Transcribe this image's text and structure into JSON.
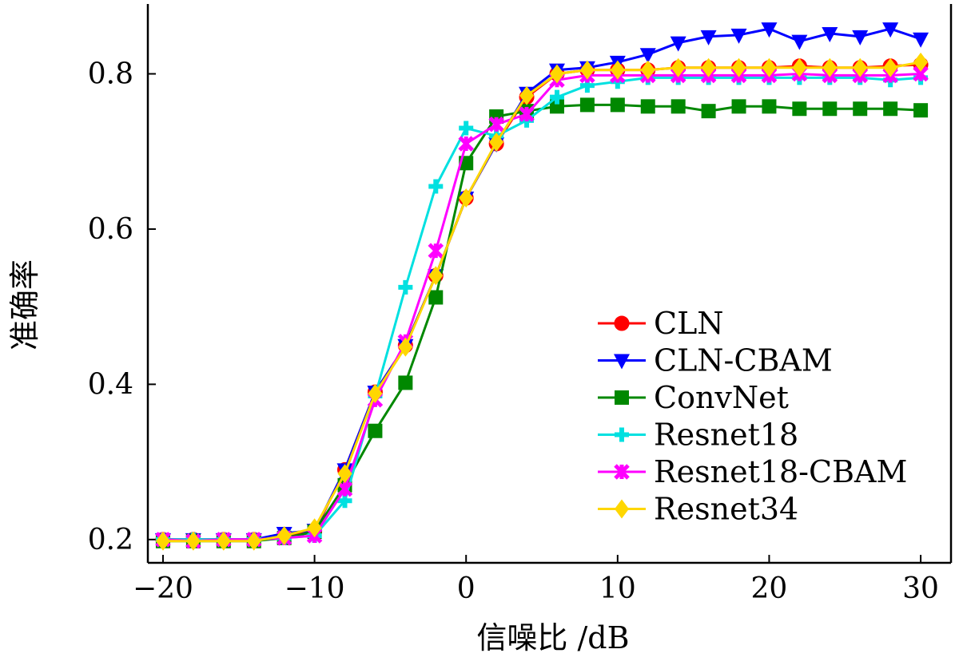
{
  "chart_data": {
    "type": "line",
    "title": "",
    "xlabel": "信噪比 /dB",
    "ylabel": "准确率",
    "xlim": [
      -21,
      32
    ],
    "ylim": [
      0.17,
      0.89
    ],
    "xticks": [
      -20,
      -10,
      0,
      10,
      20,
      30
    ],
    "xtick_labels": [
      "−20",
      "−10",
      "0",
      "10",
      "20",
      "30"
    ],
    "yticks": [
      0.2,
      0.4,
      0.6,
      0.8
    ],
    "ytick_labels": [
      "0.2",
      "0.4",
      "0.6",
      "0.8"
    ],
    "grid": false,
    "legend_position": "lower-right",
    "x": [
      -20,
      -18,
      -16,
      -14,
      -12,
      -10,
      -8,
      -6,
      -4,
      -2,
      0,
      2,
      4,
      6,
      8,
      10,
      12,
      14,
      16,
      18,
      20,
      22,
      24,
      26,
      28,
      30
    ],
    "series": [
      {
        "name": "CLN",
        "color": "#ff0000",
        "marker": "circle",
        "values": [
          0.2,
          0.2,
          0.2,
          0.2,
          0.205,
          0.21,
          0.29,
          0.39,
          0.45,
          0.54,
          0.64,
          0.71,
          0.77,
          0.8,
          0.805,
          0.805,
          0.805,
          0.808,
          0.808,
          0.808,
          0.808,
          0.81,
          0.808,
          0.808,
          0.81,
          0.812
        ]
      },
      {
        "name": "CLN-CBAM",
        "color": "#0000ff",
        "marker": "triangle-down",
        "values": [
          0.2,
          0.2,
          0.2,
          0.2,
          0.208,
          0.212,
          0.29,
          0.39,
          0.45,
          0.54,
          0.64,
          0.71,
          0.775,
          0.805,
          0.808,
          0.815,
          0.825,
          0.84,
          0.848,
          0.85,
          0.858,
          0.842,
          0.852,
          0.848,
          0.858,
          0.845
        ]
      },
      {
        "name": "ConvNet",
        "color": "#008800",
        "marker": "square",
        "values": [
          0.198,
          0.198,
          0.198,
          0.198,
          0.202,
          0.21,
          0.27,
          0.34,
          0.402,
          0.512,
          0.685,
          0.745,
          0.752,
          0.758,
          0.76,
          0.76,
          0.758,
          0.758,
          0.752,
          0.758,
          0.758,
          0.755,
          0.755,
          0.755,
          0.755,
          0.753
        ]
      },
      {
        "name": "Resnet18",
        "color": "#00e0e0",
        "marker": "plus",
        "values": [
          0.2,
          0.2,
          0.2,
          0.2,
          0.202,
          0.205,
          0.25,
          0.385,
          0.525,
          0.655,
          0.73,
          0.72,
          0.74,
          0.77,
          0.785,
          0.79,
          0.795,
          0.795,
          0.795,
          0.795,
          0.795,
          0.795,
          0.795,
          0.795,
          0.792,
          0.795
        ]
      },
      {
        "name": "Resnet18-CBAM",
        "color": "#ff00ff",
        "marker": "x-star",
        "values": [
          0.2,
          0.198,
          0.2,
          0.2,
          0.202,
          0.205,
          0.265,
          0.38,
          0.455,
          0.572,
          0.71,
          0.735,
          0.748,
          0.792,
          0.798,
          0.798,
          0.798,
          0.798,
          0.798,
          0.798,
          0.798,
          0.8,
          0.798,
          0.798,
          0.798,
          0.8
        ]
      },
      {
        "name": "Resnet34",
        "color": "#ffd700",
        "marker": "diamond",
        "values": [
          0.198,
          0.198,
          0.198,
          0.198,
          0.205,
          0.215,
          0.285,
          0.388,
          0.448,
          0.54,
          0.64,
          0.712,
          0.772,
          0.8,
          0.805,
          0.805,
          0.805,
          0.808,
          0.808,
          0.808,
          0.808,
          0.808,
          0.808,
          0.808,
          0.808,
          0.815
        ]
      }
    ]
  }
}
